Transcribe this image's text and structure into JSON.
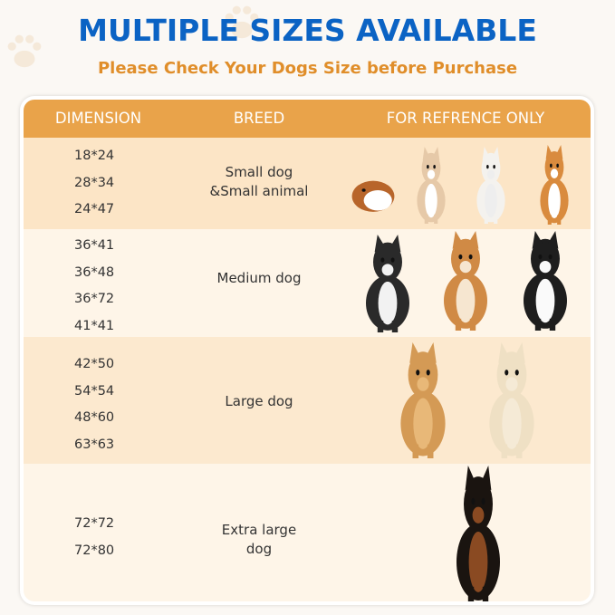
{
  "title": "MULTIPLE SIZES AVAILABLE",
  "subtitle": "Please Check Your Dogs Size before Purchase",
  "table": {
    "headers": [
      "DIMENSION",
      "BREED",
      "FOR REFRENCE ONLY"
    ],
    "rows": [
      {
        "dimensions": [
          "18*24",
          "28*34",
          "24*47"
        ],
        "breed": [
          "Small dog",
          "&Small animal"
        ],
        "images": [
          "guinea-pig",
          "chihuahua",
          "bichon-frise",
          "corgi"
        ]
      },
      {
        "dimensions": [
          "36*41",
          "36*48",
          "36*72",
          "41*41"
        ],
        "breed": [
          "Medium dog"
        ],
        "images": [
          "french-bulldog",
          "shiba-inu",
          "border-collie"
        ]
      },
      {
        "dimensions": [
          "42*50",
          "54*54",
          "48*60",
          "63*63"
        ],
        "breed": [
          "Large dog"
        ],
        "images": [
          "golden-retriever",
          "labrador"
        ]
      },
      {
        "dimensions": [
          "72*72",
          "72*80"
        ],
        "breed": [
          "Extra large",
          "dog"
        ],
        "images": [
          "doberman"
        ]
      }
    ]
  },
  "colors": {
    "title": "#0b63c4",
    "subtitle": "#e08e2a",
    "header": "#e9a34a",
    "row_dark": "#fce5c6",
    "row_light": "#fef5e8"
  }
}
